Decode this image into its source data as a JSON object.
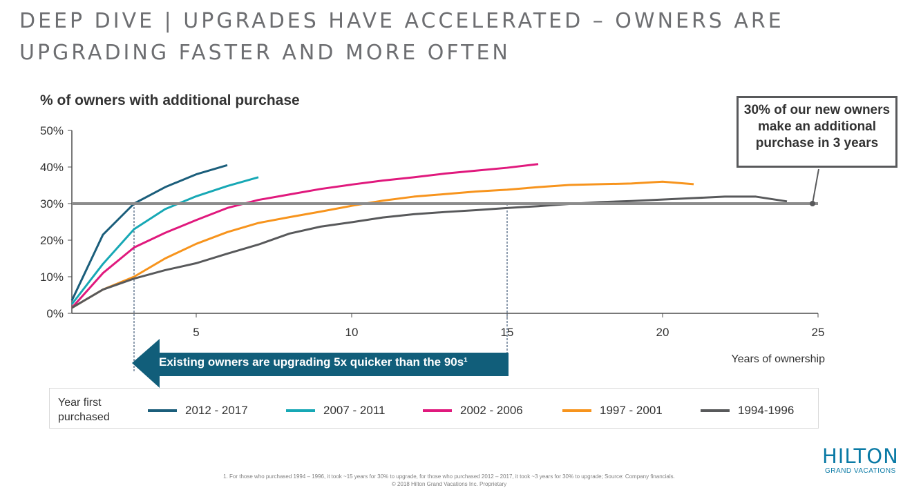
{
  "page": {
    "title": "DEEP DIVE | UPGRADES HAVE ACCELERATED – OWNERS ARE UPGRADING FASTER AND MORE OFTEN",
    "footnote": "1. For those who purchased 1994 – 1996, it took ~15 years for 30% to upgrade, for those who purchased 2012 – 2017, it took ~3 years for 30% to upgrade; Source: Company financials.",
    "copyright": "© 2018 Hilton Grand Vacations Inc. Proprietary",
    "logo": {
      "main": "HILTON",
      "sub": "GRAND VACATIONS",
      "color": "#0a7aa5"
    }
  },
  "callout": {
    "text": "30% of our new owners make an additional purchase in 3 years"
  },
  "arrow": {
    "text": "Existing owners are upgrading 5x quicker than the 90s¹",
    "color": "#115e7a"
  },
  "legend": {
    "title": "Year first purchased"
  },
  "chart_data": {
    "type": "line",
    "ylabel": "% of owners with additional purchase",
    "xlabel": "Years of ownership",
    "xlim": [
      1,
      25
    ],
    "ylim": [
      0,
      50
    ],
    "xticks": [
      "5",
      "10",
      "15",
      "20",
      "25"
    ],
    "yticks": [
      "0%",
      "10%",
      "20%",
      "30%",
      "40%",
      "50%"
    ],
    "reference_line": {
      "y": 30,
      "color": "#8c8c8c"
    },
    "markers": [
      {
        "x": 3,
        "label_ref": "2012 - 2017"
      },
      {
        "x": 15,
        "label_ref": "1994-1996"
      }
    ],
    "grid": false,
    "legend_position": "bottom",
    "series": [
      {
        "name": "2012 - 2017",
        "color": "#1b5e7b",
        "x": [
          1,
          2,
          3,
          4,
          5,
          6
        ],
        "y": [
          3.5,
          21.5,
          30,
          34.5,
          38,
          40.5
        ]
      },
      {
        "name": "2007 - 2011",
        "color": "#17a8b5",
        "x": [
          1,
          2,
          3,
          4,
          5,
          6,
          7
        ],
        "y": [
          2.5,
          13.5,
          23,
          28.5,
          32,
          34.8,
          37.2
        ]
      },
      {
        "name": "2002 - 2006",
        "color": "#e0197d",
        "x": [
          1,
          2,
          3,
          4,
          5,
          6,
          7,
          8,
          9,
          10,
          11,
          12,
          13,
          14,
          15,
          16
        ],
        "y": [
          1.5,
          11,
          18,
          22,
          25.5,
          28.8,
          31,
          32.5,
          34,
          35.2,
          36.3,
          37.2,
          38.2,
          39,
          39.8,
          40.8
        ]
      },
      {
        "name": "1997 - 2001",
        "color": "#f7941d",
        "x": [
          1,
          2,
          3,
          4,
          5,
          6,
          7,
          8,
          9,
          10,
          11,
          12,
          13,
          14,
          15,
          16,
          17,
          18,
          19,
          20,
          21
        ],
        "y": [
          1.5,
          6.5,
          10,
          15,
          19,
          22.2,
          24.7,
          26.3,
          27.8,
          29.4,
          30.8,
          31.9,
          32.6,
          33.3,
          33.8,
          34.5,
          35.1,
          35.3,
          35.5,
          36,
          35.3
        ]
      },
      {
        "name": "1994-1996",
        "color": "#58595b",
        "x": [
          1,
          2,
          3,
          4,
          5,
          6,
          7,
          8,
          9,
          10,
          11,
          12,
          13,
          14,
          15,
          16,
          17,
          18,
          19,
          20,
          21,
          22,
          23,
          24
        ],
        "y": [
          1.5,
          6.5,
          9.5,
          11.8,
          13.7,
          16.3,
          18.8,
          21.8,
          23.7,
          24.9,
          26.2,
          27.1,
          27.7,
          28.2,
          28.8,
          29.3,
          29.9,
          30.4,
          30.7,
          31.1,
          31.5,
          31.9,
          31.9,
          30.6
        ]
      }
    ]
  }
}
